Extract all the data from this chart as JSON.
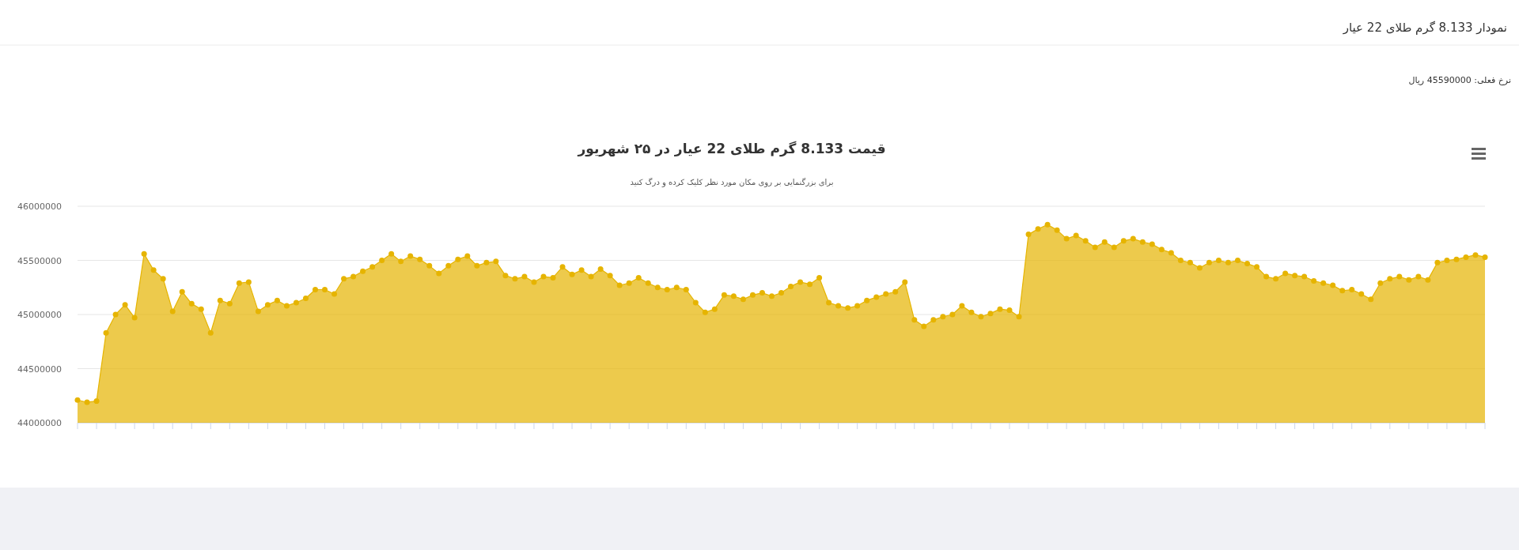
{
  "chart_data": {
    "type": "area",
    "title": "قیمت 8.133 گرم طلای 22 عیار در ۲۵ شهریور",
    "subtitle": "برای بزرگنمایی بر روی مکان مورد نظر کلیک کرده و درگ کنید",
    "annotations": [
      "نمودار 8.133 گرم طلای 22 عیار",
      "نرخ فعلی: 45590000 ریال"
    ],
    "categories": [
      null,
      null,
      null,
      null,
      null,
      null,
      null,
      null,
      null,
      null,
      null,
      null,
      null,
      null,
      null,
      null,
      null,
      null,
      null,
      null,
      null,
      null,
      null,
      null,
      null,
      null,
      null,
      null,
      null,
      null,
      null,
      null,
      null,
      null,
      null,
      null,
      null,
      null,
      null,
      null,
      null,
      null,
      null,
      null,
      null,
      null,
      null,
      null,
      null,
      null,
      null,
      null,
      null,
      null,
      null,
      null,
      null,
      null,
      null,
      null,
      null,
      null,
      null,
      null,
      null,
      null,
      null,
      null,
      null,
      null,
      null,
      null,
      null,
      null,
      null,
      null,
      null,
      null,
      null,
      null,
      null,
      null,
      null,
      null,
      null,
      null,
      null,
      null,
      null,
      null,
      null,
      null,
      null,
      null,
      null,
      null,
      null,
      null,
      null,
      null,
      null,
      null,
      null,
      null,
      null,
      null,
      null,
      null,
      null,
      null,
      null,
      null,
      null,
      null,
      null,
      null,
      null,
      null,
      null,
      null,
      null,
      null,
      null,
      null,
      null,
      null,
      null,
      null,
      null,
      null,
      null,
      null,
      null,
      null,
      null,
      null,
      null,
      null,
      null,
      null,
      null,
      null,
      null,
      null,
      null,
      null,
      null,
      null,
      null
    ],
    "series": [
      {
        "color": "#e6b400",
        "values": [
          44210000,
          44190000,
          44200000,
          44830000,
          45000000,
          45090000,
          44970000,
          45560000,
          45410000,
          45330000,
          45030000,
          45210000,
          45100000,
          45050000,
          44830000,
          45130000,
          45100000,
          45290000,
          45300000,
          45030000,
          45090000,
          45130000,
          45080000,
          45110000,
          45150000,
          45230000,
          45230000,
          45190000,
          45330000,
          45350000,
          45400000,
          45440000,
          45500000,
          45560000,
          45490000,
          45540000,
          45510000,
          45450000,
          45380000,
          45450000,
          45510000,
          45540000,
          45450000,
          45480000,
          45490000,
          45360000,
          45330000,
          45350000,
          45300000,
          45350000,
          45340000,
          45440000,
          45370000,
          45410000,
          45350000,
          45420000,
          45360000,
          45270000,
          45290000,
          45340000,
          45290000,
          45250000,
          45230000,
          45250000,
          45230000,
          45110000,
          45020000,
          45050000,
          45180000,
          45170000,
          45140000,
          45180000,
          45200000,
          45170000,
          45200000,
          45260000,
          45300000,
          45280000,
          45340000,
          45110000,
          45080000,
          45060000,
          45080000,
          45130000,
          45160000,
          45190000,
          45210000,
          45300000,
          44950000,
          44890000,
          44950000,
          44980000,
          45000000,
          45080000,
          45020000,
          44980000,
          45010000,
          45050000,
          45040000,
          44980000,
          45740000,
          45790000,
          45830000,
          45780000,
          45700000,
          45730000,
          45680000,
          45620000,
          45670000,
          45620000,
          45680000,
          45700000,
          45670000,
          45650000,
          45600000,
          45570000,
          45500000,
          45480000,
          45430000,
          45480000,
          45500000,
          45480000,
          45500000,
          45470000,
          45440000,
          45350000,
          45330000,
          45380000,
          45360000,
          45350000,
          45310000,
          45290000,
          45270000,
          45220000,
          45230000,
          45190000,
          45140000,
          45290000,
          45330000,
          45350000,
          45320000,
          45350000,
          45320000,
          45480000,
          45500000,
          45510000,
          45530000,
          45550000,
          45530000
        ]
      }
    ],
    "ylim": [
      44000000,
      46000000
    ],
    "yticks": [
      44000000,
      44500000,
      45000000,
      45500000,
      46000000
    ],
    "grid": "y",
    "marker": "circle"
  }
}
